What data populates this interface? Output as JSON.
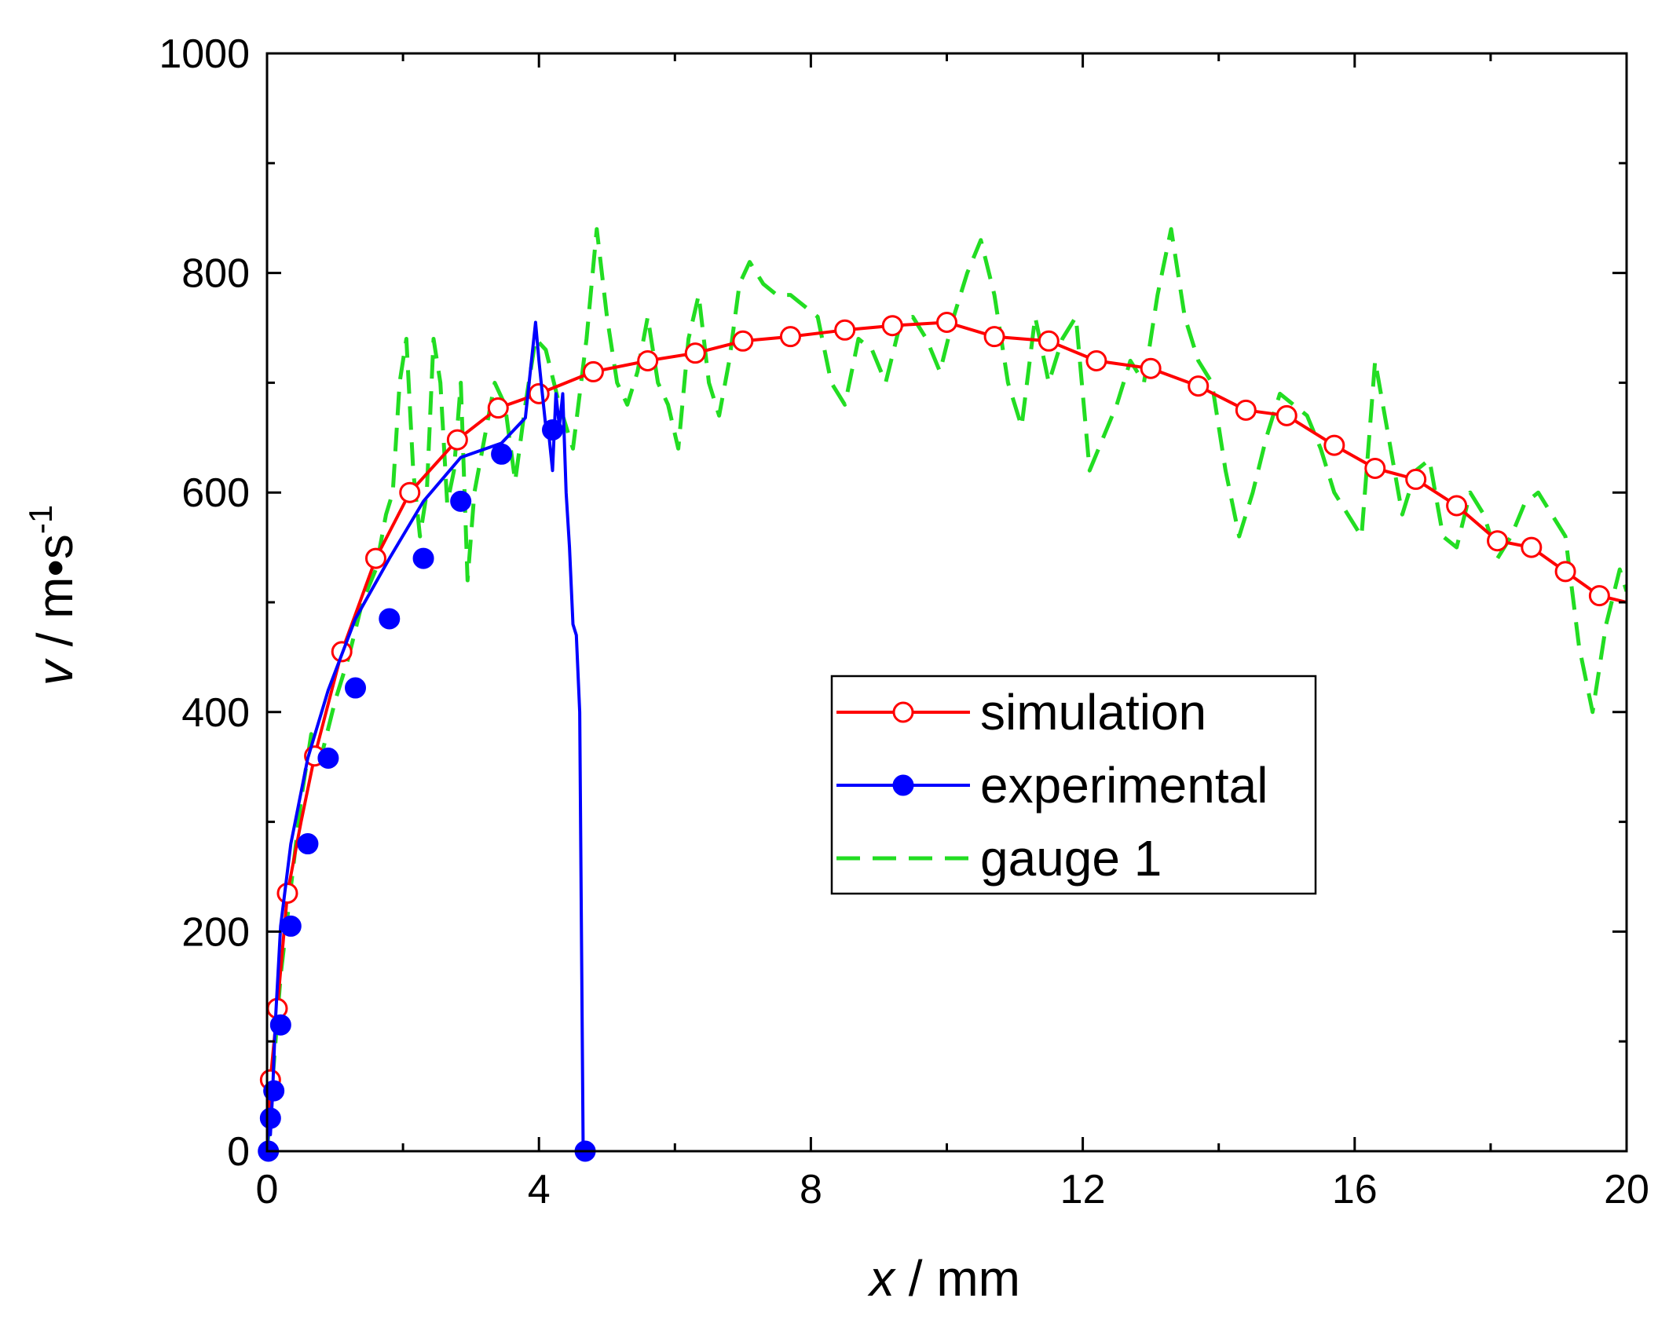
{
  "chart_data": {
    "type": "line",
    "title": "",
    "xlabel": "x / mm",
    "xlabel_var": "x",
    "xlabel_unit": " / mm",
    "ylabel": "v / m•s-1",
    "ylabel_var": "v",
    "ylabel_unit": " / m•s",
    "ylabel_exp": "-1",
    "xlim": [
      0,
      20
    ],
    "ylim": [
      0,
      1000
    ],
    "x_ticks": [
      0,
      4,
      8,
      12,
      16,
      20
    ],
    "x_tick_labels": [
      "0",
      "4",
      "8",
      "12",
      "16",
      "20"
    ],
    "y_ticks": [
      0,
      200,
      400,
      600,
      800,
      1000
    ],
    "y_tick_labels": [
      "0",
      "200",
      "400",
      "600",
      "800",
      "1000"
    ],
    "grid": false,
    "legend_position": "center-right",
    "series": [
      {
        "name": "simulation",
        "color": "#ff0000",
        "marker": "open-circle",
        "line": "solid",
        "x": [
          0,
          0.05,
          0.15,
          0.3,
          0.5,
          0.7,
          1.1,
          1.6,
          2.1,
          2.8,
          3.4,
          4.0,
          4.8,
          5.6,
          6.3,
          7.0,
          7.7,
          8.5,
          9.2,
          10.0,
          10.7,
          11.5,
          12.2,
          13.0,
          13.7,
          14.4,
          15.0,
          15.7,
          16.3,
          16.9,
          17.5,
          18.1,
          18.6,
          19.1,
          19.6,
          20.0
        ],
        "y": [
          0,
          65,
          130,
          235,
          300,
          360,
          455,
          540,
          600,
          648,
          677,
          690,
          710,
          720,
          727,
          738,
          742,
          748,
          752,
          755,
          742,
          738,
          720,
          713,
          697,
          675,
          670,
          643,
          622,
          612,
          588,
          556,
          550,
          528,
          506,
          500
        ],
        "marker_x": [
          0.05,
          0.15,
          0.3,
          0.7,
          1.1,
          1.6,
          2.1,
          2.8,
          3.4,
          4.0,
          4.8,
          5.6,
          6.3,
          7.0,
          7.7,
          8.5,
          9.2,
          10.0,
          10.7,
          11.5,
          12.2,
          13.0,
          13.7,
          14.4,
          15.0,
          15.7,
          16.3,
          16.9,
          17.5,
          18.1,
          18.6,
          19.1,
          19.6
        ],
        "marker_y": [
          65,
          130,
          235,
          360,
          455,
          540,
          600,
          648,
          677,
          690,
          710,
          720,
          727,
          738,
          742,
          748,
          752,
          755,
          742,
          738,
          720,
          713,
          697,
          675,
          670,
          643,
          622,
          612,
          588,
          556,
          550,
          528,
          506
        ]
      },
      {
        "name": "experimental",
        "color": "#0000ff",
        "marker": "filled-circle",
        "line": "solid",
        "x": [
          0,
          0.03,
          0.05,
          0.08,
          0.12,
          0.2,
          0.35,
          0.6,
          0.9,
          1.3,
          1.8,
          2.3,
          2.85,
          3.45,
          3.8,
          3.95,
          4.0,
          4.05,
          4.1,
          4.15,
          4.2,
          4.25,
          4.3,
          4.35,
          4.4,
          4.45,
          4.5,
          4.55,
          4.6,
          4.65,
          4.68,
          4.68
        ],
        "y": [
          0,
          30,
          15,
          50,
          115,
          205,
          280,
          358,
          420,
          485,
          540,
          592,
          632,
          645,
          668,
          755,
          720,
          690,
          660,
          650,
          620,
          690,
          660,
          690,
          600,
          550,
          480,
          470,
          400,
          0,
          0,
          0
        ],
        "marker_x": [
          0.02,
          0.05,
          0.1,
          0.2,
          0.35,
          0.6,
          0.9,
          1.3,
          1.8,
          2.3,
          2.85,
          3.45,
          4.2,
          4.68
        ],
        "marker_y": [
          0,
          30,
          55,
          115,
          205,
          280,
          358,
          422,
          485,
          540,
          592,
          635,
          657,
          0
        ]
      },
      {
        "name": "gauge 1",
        "color": "#22dd22",
        "marker": "none",
        "line": "dashed",
        "x": [
          0,
          0.1,
          0.2,
          0.35,
          0.5,
          0.65,
          0.8,
          1.0,
          1.2,
          1.4,
          1.6,
          1.75,
          1.85,
          1.95,
          2.05,
          2.15,
          2.25,
          2.35,
          2.45,
          2.55,
          2.65,
          2.75,
          2.85,
          2.95,
          3.05,
          3.2,
          3.35,
          3.5,
          3.65,
          3.8,
          3.95,
          4.1,
          4.3,
          4.5,
          4.7,
          4.85,
          5.0,
          5.15,
          5.3,
          5.45,
          5.6,
          5.75,
          5.9,
          6.05,
          6.2,
          6.35,
          6.5,
          6.65,
          6.8,
          6.95,
          7.1,
          7.3,
          7.5,
          7.7,
          7.9,
          8.1,
          8.3,
          8.5,
          8.7,
          8.9,
          9.1,
          9.3,
          9.5,
          9.7,
          9.9,
          10.1,
          10.3,
          10.5,
          10.7,
          10.9,
          11.1,
          11.3,
          11.5,
          11.7,
          11.9,
          12.1,
          12.3,
          12.5,
          12.7,
          12.9,
          13.1,
          13.3,
          13.5,
          13.7,
          13.9,
          14.1,
          14.3,
          14.5,
          14.7,
          14.9,
          15.1,
          15.3,
          15.5,
          15.7,
          15.9,
          16.1,
          16.3,
          16.5,
          16.7,
          16.9,
          17.1,
          17.3,
          17.5,
          17.7,
          17.9,
          18.1,
          18.3,
          18.5,
          18.7,
          18.9,
          19.1,
          19.3,
          19.5,
          19.7,
          19.9,
          20.0
        ],
        "y": [
          0,
          80,
          160,
          240,
          320,
          380,
          360,
          410,
          450,
          500,
          530,
          580,
          600,
          700,
          740,
          620,
          560,
          600,
          740,
          700,
          590,
          620,
          700,
          520,
          600,
          650,
          700,
          680,
          610,
          680,
          740,
          730,
          680,
          640,
          740,
          840,
          760,
          700,
          680,
          710,
          760,
          700,
          680,
          640,
          740,
          780,
          700,
          670,
          720,
          790,
          810,
          790,
          780,
          780,
          770,
          760,
          700,
          680,
          740,
          730,
          700,
          750,
          760,
          740,
          710,
          760,
          800,
          830,
          780,
          700,
          660,
          760,
          700,
          740,
          760,
          620,
          650,
          680,
          720,
          700,
          780,
          840,
          760,
          720,
          700,
          620,
          560,
          600,
          650,
          690,
          680,
          670,
          640,
          600,
          580,
          560,
          720,
          650,
          580,
          620,
          630,
          560,
          550,
          600,
          580,
          540,
          560,
          590,
          600,
          580,
          560,
          460,
          400,
          480,
          530,
          510
        ]
      }
    ]
  }
}
